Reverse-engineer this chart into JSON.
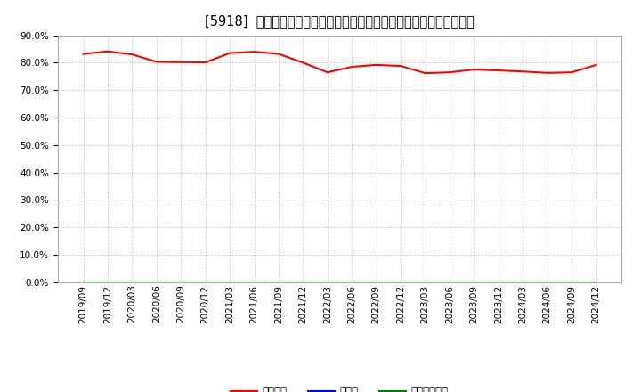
{
  "title": "[5918]  自己資本、のれん、繰延税金資産の総資産に対する比率の推移",
  "x_labels": [
    "2019/09",
    "2019/12",
    "2020/03",
    "2020/06",
    "2020/09",
    "2020/12",
    "2021/03",
    "2021/06",
    "2021/09",
    "2021/12",
    "2022/03",
    "2022/06",
    "2022/09",
    "2022/12",
    "2023/03",
    "2023/06",
    "2023/09",
    "2023/12",
    "2024/03",
    "2024/06",
    "2024/09",
    "2024/12"
  ],
  "equity_ratio": [
    83.2,
    84.1,
    83.0,
    80.3,
    80.2,
    80.1,
    83.5,
    84.0,
    83.2,
    80.0,
    76.5,
    78.5,
    79.2,
    78.8,
    76.2,
    76.5,
    77.5,
    77.2,
    76.8,
    76.3,
    76.5,
    79.2
  ],
  "goodwill_ratio": [
    0.0,
    0.0,
    0.0,
    0.0,
    0.0,
    0.0,
    0.0,
    0.0,
    0.0,
    0.0,
    0.0,
    0.0,
    0.0,
    0.0,
    0.0,
    0.0,
    0.0,
    0.0,
    0.0,
    0.0,
    0.0,
    0.0
  ],
  "deferred_tax_ratio": [
    0.0,
    0.0,
    0.0,
    0.0,
    0.0,
    0.0,
    0.0,
    0.0,
    0.0,
    0.0,
    0.0,
    0.0,
    0.0,
    0.0,
    0.0,
    0.0,
    0.0,
    0.0,
    0.0,
    0.0,
    0.0,
    0.0
  ],
  "equity_color": "#ff0000",
  "goodwill_color": "#0000ff",
  "deferred_tax_color": "#008000",
  "legend_labels": [
    "自己資本",
    "のれん",
    "繰延税金資産"
  ],
  "ylim": [
    0.0,
    90.0
  ],
  "yticks": [
    0.0,
    10.0,
    20.0,
    30.0,
    40.0,
    50.0,
    60.0,
    70.0,
    80.0,
    90.0
  ],
  "background_color": "#ffffff",
  "plot_bg_color": "#ffffff",
  "grid_color": "#bbbbbb",
  "title_fontsize": 10.5,
  "axis_fontsize": 7.5,
  "legend_fontsize": 8.5
}
